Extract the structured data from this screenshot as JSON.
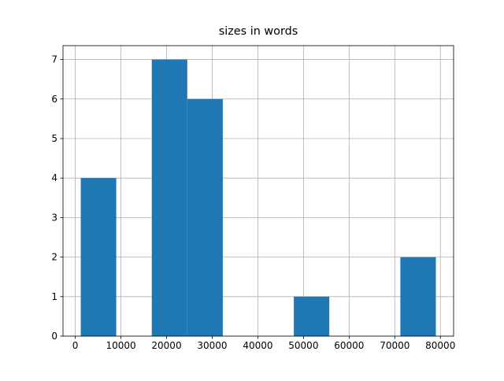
{
  "chart_data": {
    "type": "histogram",
    "title": "sizes in words",
    "bins": [
      1200,
      8980,
      16760,
      24540,
      32320,
      40100,
      47880,
      55660,
      63440,
      71220,
      79000
    ],
    "values": [
      4,
      0,
      7,
      6,
      0,
      0,
      1,
      0,
      0,
      2
    ],
    "color": "#1f77b4",
    "xlim": [
      -2690,
      82890
    ],
    "xticks": [
      0,
      10000,
      20000,
      30000,
      40000,
      50000,
      60000,
      70000,
      80000
    ],
    "ylim": [
      0,
      7.35
    ],
    "yticks": [
      0,
      1,
      2,
      3,
      4,
      5,
      6,
      7
    ],
    "grid": true
  }
}
